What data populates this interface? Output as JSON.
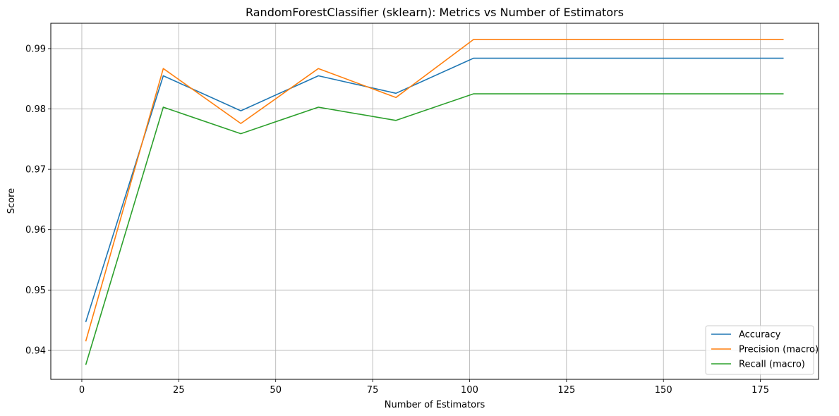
{
  "chart_data": {
    "type": "line",
    "title": "RandomForestClassifier (sklearn): Metrics vs Number of Estimators",
    "xlabel": "Number of Estimators",
    "ylabel": "Score",
    "x": [
      1,
      21,
      41,
      61,
      81,
      101,
      121,
      141,
      161,
      181
    ],
    "xlim": [
      -8,
      190
    ],
    "ylim": [
      0.9352,
      0.9942
    ],
    "xticks": [
      0,
      25,
      50,
      75,
      100,
      125,
      150,
      175
    ],
    "yticks": [
      0.94,
      0.95,
      0.96,
      0.97,
      0.98,
      0.99
    ],
    "ytick_labels": [
      "0.94",
      "0.95",
      "0.96",
      "0.97",
      "0.98",
      "0.99"
    ],
    "grid": true,
    "legend_position": "lower-right",
    "series": [
      {
        "name": "Accuracy",
        "color": "#1f77b4",
        "values": [
          0.9447,
          0.9855,
          0.9797,
          0.9855,
          0.9826,
          0.9884,
          0.9884,
          0.9884,
          0.9884,
          0.9884
        ]
      },
      {
        "name": "Precision (macro)",
        "color": "#ff7f0e",
        "values": [
          0.9415,
          0.9867,
          0.9776,
          0.9867,
          0.9819,
          0.9915,
          0.9915,
          0.9915,
          0.9915,
          0.9915
        ]
      },
      {
        "name": "Recall (macro)",
        "color": "#2ca02c",
        "values": [
          0.9376,
          0.9803,
          0.9759,
          0.9803,
          0.9781,
          0.9825,
          0.9825,
          0.9825,
          0.9825,
          0.9825
        ]
      }
    ]
  }
}
